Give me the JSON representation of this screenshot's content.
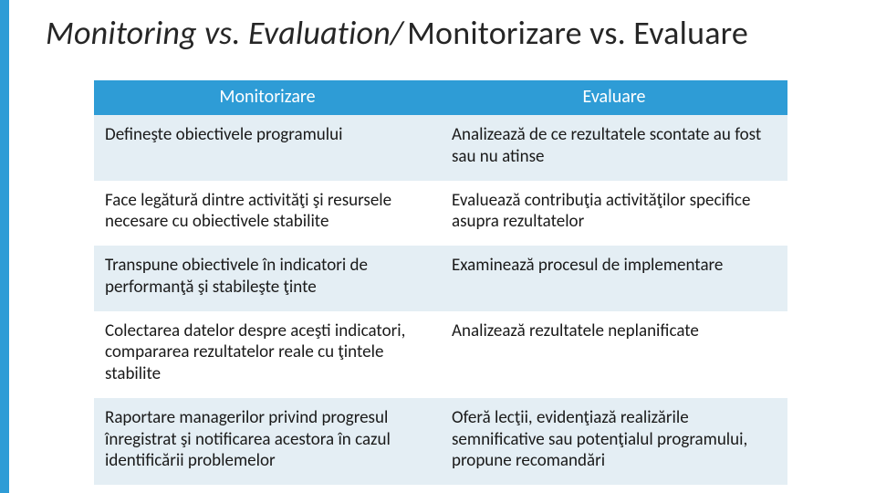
{
  "accent_color": "#2e9cd6",
  "background_color": "#ffffff",
  "text_color": "#1a1a1a",
  "header_text_color": "#ffffff",
  "stripe_colors": [
    "#e4eef4",
    "#ffffff"
  ],
  "title": {
    "english": "Monitoring vs. Evaluation/",
    "romanian": " Monitorizare vs. Evaluare",
    "english_italic": true,
    "fontsize": 36
  },
  "table": {
    "type": "table",
    "column_widths": [
      "50%",
      "50%"
    ],
    "header_bg": "#2e9cd6",
    "header_fontsize": 20,
    "cell_fontsize": 19,
    "columns": [
      "Monitorizare",
      "Evaluare"
    ],
    "rows": [
      [
        "Defineşte obiectivele programului",
        "Analizează de ce rezultatele scontate au fost sau nu atinse"
      ],
      [
        "Face legătură dintre activităţi şi resursele necesare cu obiectivele stabilite",
        "Evaluează contribuţia activităţilor specifice asupra rezultatelor"
      ],
      [
        "Transpune obiectivele în indicatori de performanţă şi stabileşte ţinte",
        "Examinează procesul de implementare"
      ],
      [
        "Colectarea datelor despre aceşti indicatori, compararea rezultatelor reale cu ţintele stabilite",
        "Analizează rezultatele neplanificate"
      ],
      [
        "Raportare managerilor privind progresul înregistrat şi notificarea acestora  în cazul identificării problemelor",
        "Oferă lecţii, evidenţiază realizările semnificative sau potenţialul programului, propune recomandări"
      ]
    ]
  }
}
